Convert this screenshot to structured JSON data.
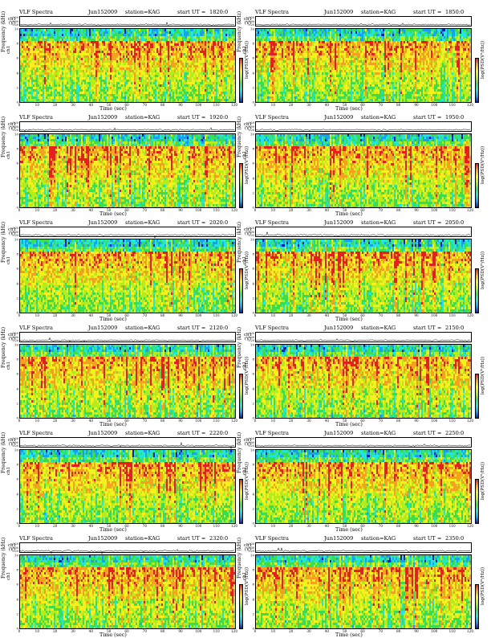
{
  "page_title_common": "VLF Spectra",
  "chart_data": [
    {
      "type": "heatmap",
      "title": "VLF Spectra",
      "date": "Jun152009",
      "station": "station=KAG",
      "start_label": "start  UT  =",
      "start_time": "1820:0",
      "trace_ylabel": "ch1 (V)",
      "trace_ticks": [
        "0.20",
        "0.00",
        "-0.20"
      ],
      "freq_ylabel": "Frequency (kHz)",
      "freq_ylabel_prefix": "ch1",
      "xlabel": "Time (sec)",
      "xticks": [
        "0",
        "10",
        "20",
        "30",
        "40",
        "50",
        "60",
        "70",
        "80",
        "90",
        "100",
        "110",
        "120"
      ],
      "yticks": [
        "0",
        "2",
        "4",
        "6",
        "8",
        "10"
      ],
      "colorbar_label": "log(PSD(V²/Hz))",
      "xlim": [
        0,
        120
      ],
      "ylim": [
        0,
        10
      ]
    },
    {
      "type": "heatmap",
      "title": "VLF Spectra",
      "date": "Jun152009",
      "station": "station=KAG",
      "start_label": "start  UT  =",
      "start_time": "1850:0",
      "trace_ylabel": "ch1 (V)",
      "trace_ticks": [
        "0.20",
        "0.00",
        "-0.20"
      ],
      "freq_ylabel": "Frequency (kHz)",
      "freq_ylabel_prefix": "ch1",
      "xlabel": "Time (sec)",
      "xticks": [
        "0",
        "10",
        "20",
        "30",
        "40",
        "50",
        "60",
        "70",
        "80",
        "90",
        "100",
        "110",
        "120"
      ],
      "yticks": [
        "0",
        "2",
        "4",
        "6",
        "8",
        "10"
      ],
      "colorbar_label": "log(PSD(V²/Hz))",
      "xlim": [
        0,
        120
      ],
      "ylim": [
        0,
        10
      ]
    },
    {
      "type": "heatmap",
      "title": "VLF Spectra",
      "date": "Jun152009",
      "station": "station=KAG",
      "start_label": "start  UT  =",
      "start_time": "1920:0",
      "trace_ylabel": "ch1 (V)",
      "trace_ticks": [
        "0.20",
        "0.00",
        "-0.20"
      ],
      "freq_ylabel": "Frequency (kHz)",
      "freq_ylabel_prefix": "ch1",
      "xlabel": "Time (sec)",
      "xticks": [
        "0",
        "10",
        "20",
        "30",
        "40",
        "50",
        "60",
        "70",
        "80",
        "90",
        "100",
        "110",
        "120"
      ],
      "yticks": [
        "0",
        "2",
        "4",
        "6",
        "8",
        "10"
      ],
      "colorbar_label": "log(PSD(V²/Hz))",
      "xlim": [
        0,
        120
      ],
      "ylim": [
        0,
        10
      ]
    },
    {
      "type": "heatmap",
      "title": "VLF Spectra",
      "date": "Jun152009",
      "station": "station=KAG",
      "start_label": "start  UT  =",
      "start_time": "1950:0",
      "trace_ylabel": "ch1 (V)",
      "trace_ticks": [
        "0.20",
        "0.00",
        "-0.20"
      ],
      "freq_ylabel": "Frequency (kHz)",
      "freq_ylabel_prefix": "ch1",
      "xlabel": "Time (sec)",
      "xticks": [
        "0",
        "10",
        "20",
        "30",
        "40",
        "50",
        "60",
        "70",
        "80",
        "90",
        "100",
        "110",
        "120"
      ],
      "yticks": [
        "0",
        "2",
        "4",
        "6",
        "8",
        "10"
      ],
      "colorbar_label": "log(PSD(V²/Hz))",
      "xlim": [
        0,
        120
      ],
      "ylim": [
        0,
        10
      ]
    },
    {
      "type": "heatmap",
      "title": "VLF Spectra",
      "date": "Jun152009",
      "station": "station=KAG",
      "start_label": "start  UT  =",
      "start_time": "2020:0",
      "trace_ylabel": "ch1 (V)",
      "trace_ticks": [
        "0.20",
        "0.00",
        "-0.20"
      ],
      "freq_ylabel": "Frequency (kHz)",
      "freq_ylabel_prefix": "ch1",
      "xlabel": "Time (sec)",
      "xticks": [
        "0",
        "10",
        "20",
        "30",
        "40",
        "50",
        "60",
        "70",
        "80",
        "90",
        "100",
        "110",
        "120"
      ],
      "yticks": [
        "0",
        "2",
        "4",
        "6",
        "8",
        "10"
      ],
      "colorbar_label": "log(PSD(V²/Hz))",
      "xlim": [
        0,
        120
      ],
      "ylim": [
        0,
        10
      ]
    },
    {
      "type": "heatmap",
      "title": "VLF Spectra",
      "date": "Jun152009",
      "station": "station=KAG",
      "start_label": "start  UT  =",
      "start_time": "2050:0",
      "trace_ylabel": "ch1 (V)",
      "trace_ticks": [
        "0.20",
        "0.00",
        "-0.20"
      ],
      "freq_ylabel": "Frequency (kHz)",
      "freq_ylabel_prefix": "ch1",
      "xlabel": "Time (sec)",
      "xticks": [
        "0",
        "10",
        "20",
        "30",
        "40",
        "50",
        "60",
        "70",
        "80",
        "90",
        "100",
        "110",
        "120"
      ],
      "yticks": [
        "0",
        "2",
        "4",
        "6",
        "8",
        "10"
      ],
      "colorbar_label": "log(PSD(V²/Hz))",
      "xlim": [
        0,
        120
      ],
      "ylim": [
        0,
        10
      ]
    },
    {
      "type": "heatmap",
      "title": "VLF Spectra",
      "date": "Jun152009",
      "station": "station=KAG",
      "start_label": "start  UT  =",
      "start_time": "2120:0",
      "trace_ylabel": "ch1 (V)",
      "trace_ticks": [
        "0.20",
        "0.00",
        "-0.20"
      ],
      "freq_ylabel": "Frequency (kHz)",
      "freq_ylabel_prefix": "ch1",
      "xlabel": "Time (sec)",
      "xticks": [
        "0",
        "10",
        "20",
        "30",
        "40",
        "50",
        "60",
        "70",
        "80",
        "90",
        "100",
        "110",
        "120"
      ],
      "yticks": [
        "0",
        "2",
        "4",
        "6",
        "8",
        "10"
      ],
      "colorbar_label": "log(PSD(V²/Hz))",
      "xlim": [
        0,
        120
      ],
      "ylim": [
        0,
        10
      ]
    },
    {
      "type": "heatmap",
      "title": "VLF Spectra",
      "date": "Jun152009",
      "station": "station=KAG",
      "start_label": "start  UT  =",
      "start_time": "2150:0",
      "trace_ylabel": "ch1 (V)",
      "trace_ticks": [
        "0.20",
        "0.00",
        "-0.20"
      ],
      "freq_ylabel": "Frequency (kHz)",
      "freq_ylabel_prefix": "ch1",
      "xlabel": "Time (sec)",
      "xticks": [
        "0",
        "10",
        "20",
        "30",
        "40",
        "50",
        "60",
        "70",
        "80",
        "90",
        "100",
        "110",
        "120"
      ],
      "yticks": [
        "0",
        "2",
        "4",
        "6",
        "8",
        "10"
      ],
      "colorbar_label": "log(PSD(V²/Hz))",
      "xlim": [
        0,
        120
      ],
      "ylim": [
        0,
        10
      ]
    },
    {
      "type": "heatmap",
      "title": "VLF Spectra",
      "date": "Jun152009",
      "station": "station=KAG",
      "start_label": "start  UT  =",
      "start_time": "2220:0",
      "trace_ylabel": "ch1 (V)",
      "trace_ticks": [
        "0.20",
        "0.00",
        "-0.20"
      ],
      "freq_ylabel": "Frequency (kHz)",
      "freq_ylabel_prefix": "ch1",
      "xlabel": "Time (sec)",
      "xticks": [
        "0",
        "10",
        "20",
        "30",
        "40",
        "50",
        "60",
        "70",
        "80",
        "90",
        "100",
        "110",
        "120"
      ],
      "yticks": [
        "0",
        "2",
        "4",
        "6",
        "8",
        "10"
      ],
      "colorbar_label": "log(PSD(V²/Hz))",
      "xlim": [
        0,
        120
      ],
      "ylim": [
        0,
        10
      ]
    },
    {
      "type": "heatmap",
      "title": "VLF Spectra",
      "date": "Jun152009",
      "station": "station=KAG",
      "start_label": "start  UT  =",
      "start_time": "2250:0",
      "trace_ylabel": "ch1 (V)",
      "trace_ticks": [
        "0.20",
        "0.00",
        "-0.20"
      ],
      "freq_ylabel": "Frequency (kHz)",
      "freq_ylabel_prefix": "ch1",
      "xlabel": "Time (sec)",
      "xticks": [
        "0",
        "10",
        "20",
        "30",
        "40",
        "50",
        "60",
        "70",
        "80",
        "90",
        "100",
        "110",
        "120"
      ],
      "yticks": [
        "0",
        "2",
        "4",
        "6",
        "8",
        "10"
      ],
      "colorbar_label": "log(PSD(V²/Hz))",
      "xlim": [
        0,
        120
      ],
      "ylim": [
        0,
        10
      ]
    },
    {
      "type": "heatmap",
      "title": "VLF Spectra",
      "date": "Jun152009",
      "station": "station=KAG",
      "start_label": "start  UT  =",
      "start_time": "2320:0",
      "trace_ylabel": "ch1 (V)",
      "trace_ticks": [
        "0.20",
        "0.00",
        "-0.20"
      ],
      "freq_ylabel": "Frequency (kHz)",
      "freq_ylabel_prefix": "ch1",
      "xlabel": "Time (sec)",
      "xticks": [
        "0",
        "10",
        "20",
        "30",
        "40",
        "50",
        "60",
        "70",
        "80",
        "90",
        "100",
        "110",
        "120"
      ],
      "yticks": [
        "0",
        "2",
        "4",
        "6",
        "8",
        "10"
      ],
      "colorbar_label": "log(PSD(V²/Hz))",
      "xlim": [
        0,
        120
      ],
      "ylim": [
        0,
        10
      ]
    },
    {
      "type": "heatmap",
      "title": "VLF Spectra",
      "date": "Jun152009",
      "station": "station=KAG",
      "start_label": "start  UT  =",
      "start_time": "2350:0",
      "trace_ylabel": "ch1 (V)",
      "trace_ticks": [
        "0.20",
        "0.00",
        "-0.20"
      ],
      "freq_ylabel": "Frequency (kHz)",
      "freq_ylabel_prefix": "ch1",
      "xlabel": "Time (sec)",
      "xticks": [
        "0",
        "10",
        "20",
        "30",
        "40",
        "50",
        "60",
        "70",
        "80",
        "90",
        "100",
        "110",
        "120"
      ],
      "yticks": [
        "0",
        "2",
        "4",
        "6",
        "8",
        "10"
      ],
      "colorbar_label": "log(PSD(V²/Hz))",
      "xlim": [
        0,
        120
      ],
      "ylim": [
        0,
        10
      ]
    }
  ],
  "colorscale": [
    "#0a1fb4",
    "#1aa0f0",
    "#22e6d8",
    "#3cdc50",
    "#b4ec1e",
    "#f5f01e",
    "#f5a01e",
    "#e61e1e"
  ],
  "colorbar_ticks": [
    "-",
    "-",
    "-"
  ]
}
